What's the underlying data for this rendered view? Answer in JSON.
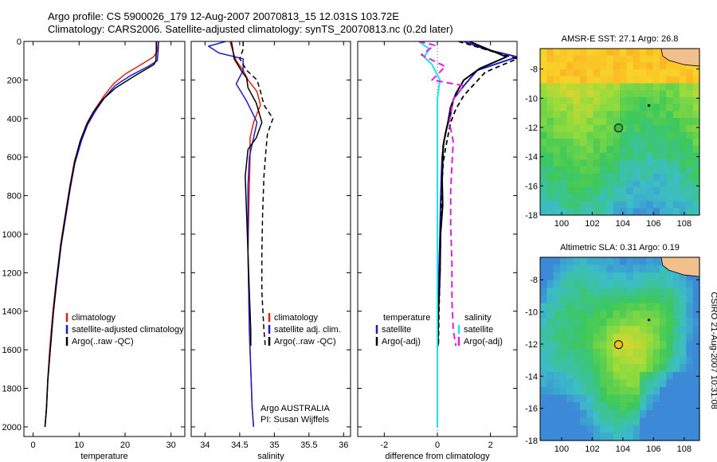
{
  "header": {
    "line1": "Argo profile: CS 5900026_179 12-Aug-2007 20070813_15 12.031S 103.72E",
    "line2": "Climatology: CARS2006. Satellite-adjusted climatology: synTS_20070813.nc (0.2d later)"
  },
  "side_caption": "CSIRO 21-Aug-2007 10:31:08",
  "colors": {
    "climatology": "#dd2211",
    "satellite": "#1c1ccc",
    "argo": "#000000",
    "cyan": "#22e0ec",
    "magenta": "#e020e0"
  },
  "chart_data": [
    {
      "type": "line",
      "xlabel": "temperature",
      "xlim": [
        -2,
        33
      ],
      "ylim": [
        2050,
        0
      ],
      "x_ticks": [
        0,
        10,
        20,
        30
      ],
      "y_ticks": [
        0,
        200,
        400,
        600,
        800,
        1000,
        1200,
        1400,
        1600,
        1800,
        2000
      ],
      "legend": {
        "position": "bottom-right",
        "entries": [
          "climatology",
          "satellite-adjusted climatology",
          "Argo(..raw -QC)"
        ]
      },
      "series": [
        {
          "name": "climatology",
          "color": "climatology",
          "width": 1.5,
          "dash": "",
          "x": [
            27.2,
            27.0,
            26.2,
            23.5,
            20.0,
            17.5,
            15.5,
            13.5,
            11.8,
            10.5,
            9.0,
            8.0,
            7.0,
            6.0,
            5.0,
            4.3,
            3.6,
            3.2,
            2.9,
            2.6
          ],
          "y": [
            0,
            50,
            80,
            120,
            170,
            220,
            280,
            350,
            420,
            500,
            620,
            750,
            900,
            1050,
            1250,
            1400,
            1600,
            1750,
            1900,
            2000
          ]
        },
        {
          "name": "satellite-adjusted climatology",
          "color": "satellite",
          "width": 1.5,
          "dash": "",
          "x": [
            27.3,
            27.2,
            27.0,
            25.0,
            21.0,
            17.8,
            15.6,
            13.6,
            11.9,
            10.6,
            9.1,
            8.1,
            7.1,
            6.1,
            5.1,
            4.4,
            3.7,
            3.2,
            2.9,
            2.6
          ],
          "y": [
            0,
            50,
            100,
            130,
            180,
            230,
            290,
            360,
            430,
            510,
            630,
            760,
            910,
            1060,
            1260,
            1410,
            1610,
            1760,
            1910,
            2000
          ]
        },
        {
          "name": "Argo(..raw -QC)",
          "color": "argo",
          "width": 1.5,
          "dash": "",
          "x": [
            26.8,
            26.8,
            26.7,
            26.3,
            22.0,
            18.0,
            15.2,
            13.0,
            11.5,
            10.2,
            9.0,
            8.0,
            7.0,
            6.0,
            5.0,
            4.4,
            3.7,
            3.2,
            2.9,
            2.6
          ],
          "y": [
            0,
            50,
            100,
            120,
            180,
            240,
            300,
            370,
            440,
            520,
            630,
            760,
            910,
            1060,
            1260,
            1410,
            1610,
            1760,
            1910,
            2000
          ]
        }
      ]
    },
    {
      "type": "line",
      "xlabel": "salinity",
      "xlim": [
        33.8,
        36.1
      ],
      "ylim": [
        2050,
        0
      ],
      "x_ticks": [
        34,
        34.5,
        35,
        35.5,
        36
      ],
      "legend": {
        "position": "bottom-right",
        "entries": [
          "climatology",
          "satellite adj. clim.",
          "Argo(..raw -QC)"
        ]
      },
      "annotations": [
        "Argo AUSTRALIA",
        "PI: Susan Wijffels"
      ],
      "series": [
        {
          "name": "climatology",
          "color": "climatology",
          "width": 1.5,
          "dash": "",
          "x": [
            34.36,
            34.4,
            34.45,
            34.55,
            34.62,
            34.75,
            34.8,
            34.7,
            34.65,
            34.65,
            34.64,
            34.63,
            34.62,
            34.63,
            34.64,
            34.66,
            34.68,
            34.7
          ],
          "y": [
            0,
            50,
            100,
            150,
            200,
            260,
            330,
            420,
            500,
            600,
            750,
            900,
            1100,
            1300,
            1500,
            1700,
            1900,
            2000
          ]
        },
        {
          "name": "satellite adj. clim.",
          "color": "satellite",
          "width": 1.5,
          "dash": "",
          "x": [
            34.3,
            34.05,
            34.2,
            34.55,
            34.55,
            34.45,
            34.6,
            34.75,
            34.7,
            34.64,
            34.62,
            34.62,
            34.62,
            34.63,
            34.64,
            34.66,
            34.68,
            34.7
          ],
          "y": [
            0,
            25,
            60,
            90,
            150,
            220,
            310,
            420,
            500,
            600,
            750,
            900,
            1100,
            1300,
            1500,
            1700,
            1900,
            2000
          ]
        },
        {
          "name": "Argo(..raw -QC)",
          "color": "argo",
          "width": 1.5,
          "dash": "",
          "x": [
            34.38,
            34.4,
            34.42,
            34.52,
            34.6,
            34.62,
            34.74,
            34.82,
            34.74,
            34.62,
            34.58,
            34.6,
            34.62,
            34.64,
            34.66,
            34.66
          ],
          "y": [
            0,
            40,
            90,
            150,
            190,
            240,
            320,
            420,
            500,
            560,
            700,
            900,
            1100,
            1300,
            1500,
            1580
          ]
        },
        {
          "name": "Argo(..raw -QC)",
          "color": "argo",
          "width": 1.5,
          "dash": "6,4",
          "x": [
            34.55,
            34.55,
            34.5,
            34.6,
            34.75,
            34.8,
            34.85,
            34.98,
            34.9,
            34.88,
            34.85,
            34.83,
            34.82,
            34.82,
            34.85,
            34.87
          ],
          "y": [
            0,
            40,
            90,
            150,
            200,
            260,
            330,
            400,
            480,
            560,
            700,
            900,
            1100,
            1300,
            1500,
            1580
          ]
        }
      ]
    },
    {
      "type": "line",
      "xlabel": "difference from climatology",
      "xlim": [
        -3,
        3
      ],
      "ylim": [
        2050,
        0
      ],
      "x_ticks": [
        -2,
        0,
        2
      ],
      "legend": {
        "position": "bottom-right",
        "temperature_label": "temperature",
        "salinity_label": "salinity",
        "entries_temperature": [
          "satellite",
          "Argo(-adj)"
        ],
        "entries_salinity": [
          "satellite",
          "Argo(-adj)"
        ]
      },
      "series": [
        {
          "name": "satellite",
          "color": "satellite",
          "width": 2,
          "dash": "",
          "x": [
            1.0,
            1.8,
            3.0,
            1.5,
            1.0,
            0.6,
            0.5,
            0.35,
            0.25,
            0.18,
            0.15,
            0.12,
            0.1,
            0.06,
            0.02,
            0.0,
            0.0
          ],
          "y": [
            0,
            40,
            80,
            150,
            230,
            300,
            380,
            450,
            520,
            600,
            700,
            850,
            1000,
            1200,
            1400,
            1600,
            2000
          ]
        },
        {
          "name": "Argo(-adj)",
          "color": "argo",
          "width": 2,
          "dash": "",
          "x": [
            1.2,
            2.6,
            1.6,
            1.0,
            0.7,
            0.5,
            0.4,
            0.3,
            0.22,
            0.2,
            0.18,
            0.2,
            0.12,
            0.1,
            0.04,
            0.02
          ],
          "y": [
            0,
            80,
            140,
            200,
            270,
            340,
            420,
            480,
            540,
            620,
            720,
            850,
            1000,
            1200,
            1400,
            1580
          ]
        },
        {
          "name": "Argo(-adj)",
          "color": "argo",
          "width": 1.8,
          "dash": "6,4",
          "x": [
            0.8,
            3.0,
            1.8,
            1.4,
            1.0,
            0.7,
            0.5,
            0.4,
            0.3,
            0.22,
            0.18,
            0.15,
            0.12,
            0.1,
            0.06,
            0.04
          ],
          "y": [
            0,
            90,
            160,
            220,
            280,
            350,
            420,
            490,
            560,
            630,
            720,
            850,
            1000,
            1200,
            1400,
            1580
          ]
        },
        {
          "name": "satellite",
          "color": "cyan",
          "width": 2,
          "dash": "",
          "x": [
            -0.7,
            -0.3,
            -0.5,
            -0.2,
            0.1,
            0.0,
            0.0,
            0.0,
            0.0,
            0.0,
            0.0,
            0.0,
            0.0,
            0.0,
            0.0,
            0.0
          ],
          "y": [
            0,
            40,
            80,
            120,
            200,
            300,
            400,
            500,
            600,
            700,
            900,
            1100,
            1300,
            1500,
            1700,
            2000
          ]
        },
        {
          "name": "Argo(-adj)",
          "color": "magenta",
          "width": 2,
          "dash": "8,5",
          "x": [
            -0.7,
            -0.1,
            -0.6,
            0.3,
            -0.2,
            1.0,
            0.6,
            0.45,
            0.6,
            0.55,
            0.5,
            0.5,
            0.55,
            0.55,
            0.6,
            0.7
          ],
          "y": [
            0,
            20,
            70,
            130,
            200,
            230,
            300,
            420,
            520,
            640,
            780,
            950,
            1150,
            1350,
            1500,
            1580
          ]
        }
      ]
    },
    {
      "type": "heatmap",
      "title": "AMSR-E SST: 27.1 Argo: 26.8",
      "xlim": [
        98.6,
        109
      ],
      "ylim": [
        -18,
        -6.6
      ],
      "x_ticks": [
        100,
        102,
        104,
        106,
        108
      ],
      "y_ticks": [
        -8,
        -10,
        -12,
        -14,
        -16,
        -18
      ],
      "marker": {
        "lon": 103.72,
        "lat": -12.031
      }
    },
    {
      "type": "heatmap",
      "title": "Altimetric SLA: 0.31 Argo: 0.19",
      "xlim": [
        98.6,
        109
      ],
      "ylim": [
        -18,
        -6.6
      ],
      "x_ticks": [
        100,
        102,
        104,
        106,
        108
      ],
      "y_ticks": [
        -8,
        -10,
        -12,
        -14,
        -16,
        -18
      ],
      "marker": {
        "lon": 103.72,
        "lat": -12.031
      }
    }
  ]
}
